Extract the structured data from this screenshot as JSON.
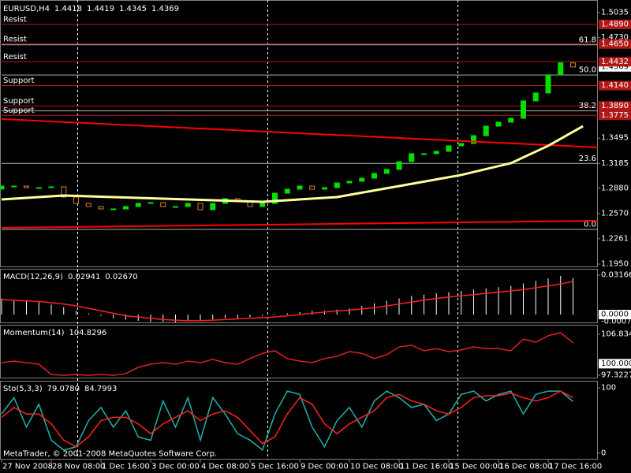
{
  "chart_data": [
    {
      "type": "candlestick",
      "title": "EURUSD,H4",
      "readout": [
        "1.4418",
        "1.4419",
        "1.4345",
        "1.4369"
      ],
      "xlim": [
        0,
        48
      ],
      "ylim": [
        1.1921,
        1.517
      ],
      "yticks": [
        1.5035,
        {
          "value": 1.473,
          "label": "1.4730"
        },
        1.3495,
        1.3185,
        {
          "value": 1.288,
          "label": "1.2880"
        },
        {
          "value": 1.257,
          "label": "1.2570"
        },
        1.2261,
        {
          "value": 1.195,
          "label": "1.1950"
        }
      ],
      "up_color": "#00e000",
      "down_color": "#d08030",
      "level_color": "#b01818",
      "fibo_color": "#b0b0b0",
      "x": [
        0,
        1,
        2,
        3,
        4,
        5,
        6,
        7,
        8,
        9,
        10,
        11,
        12,
        13,
        14,
        15,
        16,
        17,
        18,
        19,
        20,
        21,
        22,
        23,
        24,
        25,
        26,
        27,
        28,
        29,
        30,
        31,
        32,
        33,
        34,
        35,
        36,
        37,
        38,
        39,
        40,
        41,
        42,
        43,
        44,
        45,
        46
      ],
      "open": [
        1.287,
        1.2907,
        1.2907,
        1.2888,
        1.2888,
        1.2898,
        1.2772,
        1.2695,
        1.2656,
        1.2627,
        1.2627,
        1.2656,
        1.2695,
        1.2704,
        1.2656,
        1.2656,
        1.2695,
        1.2617,
        1.2695,
        1.2753,
        1.2724,
        1.2656,
        1.2695,
        1.282,
        1.2869,
        1.2907,
        1.2869,
        1.2888,
        1.2946,
        1.2966,
        1.3004,
        1.3062,
        1.3111,
        1.3207,
        1.3304,
        1.3304,
        1.3333,
        1.3401,
        1.343,
        1.3526,
        1.3642,
        1.3691,
        1.3739,
        1.3952,
        1.4049,
        1.4271,
        1.4418
      ],
      "close": [
        1.2907,
        1.2907,
        1.2888,
        1.2888,
        1.2898,
        1.2772,
        1.2695,
        1.2656,
        1.2627,
        1.2627,
        1.2656,
        1.2695,
        1.2704,
        1.2656,
        1.2656,
        1.2695,
        1.2617,
        1.2695,
        1.2753,
        1.2724,
        1.2656,
        1.2695,
        1.282,
        1.2869,
        1.2907,
        1.2869,
        1.2888,
        1.2946,
        1.2966,
        1.3004,
        1.3062,
        1.3111,
        1.3207,
        1.3304,
        1.3304,
        1.3333,
        1.3401,
        1.343,
        1.3526,
        1.3642,
        1.3691,
        1.3739,
        1.3952,
        1.4049,
        1.4271,
        1.4418,
        1.4369
      ],
      "lines": [
        {
          "color": "#ff0000",
          "width": 2,
          "x": [
            0,
            48
          ],
          "values": [
            1.3729,
            1.3381
          ]
        },
        {
          "color": "#ff0000",
          "width": 2,
          "x": [
            0,
            48
          ],
          "values": [
            1.2395,
            1.2482
          ]
        },
        {
          "color": "#ffff99",
          "width": 3,
          "x": [
            0,
            5,
            13,
            21,
            27,
            32,
            37,
            41,
            44,
            46.8
          ],
          "values": [
            1.2743,
            1.2791,
            1.2753,
            1.2714,
            1.2772,
            1.2907,
            1.3043,
            1.3188,
            1.3401,
            1.3642
          ]
        }
      ],
      "levels": [
        {
          "name": "Resist",
          "value": 1.489,
          "value_label": "1.4890"
        },
        {
          "name": "Resist",
          "value": 1.465,
          "value_label": "1.4650"
        },
        {
          "name": "Resist",
          "value": 1.4432
        },
        {
          "name": "Support",
          "value": 1.414,
          "value_label": "1.4140"
        },
        {
          "name": "Support",
          "value": 1.389,
          "value_label": "1.3890"
        },
        {
          "name": "Support",
          "value": 1.3775
        }
      ],
      "fibo": [
        {
          "label": "61.8",
          "value": 1.464
        },
        {
          "label": "50.0",
          "value": 1.427
        },
        {
          "label": "38.2",
          "value": 1.383
        },
        {
          "label": "23.6",
          "value": 1.3185
        },
        {
          "label": "0.0",
          "value": 1.2375
        }
      ]
    },
    {
      "type": "indicator",
      "title": "MACD(12,26,9)",
      "readout": [
        "0.02941",
        "0.02670"
      ],
      "xlim": [
        0,
        48
      ],
      "ylim": [
        -0.00633,
        0.03609
      ],
      "yticks": [
        0.03166,
        {
          "value": 0,
          "label": "0.0000",
          "box": "#ffffff"
        },
        -0.000757
      ],
      "x": [
        0,
        1,
        2,
        3,
        4,
        5,
        6,
        7,
        8,
        9,
        10,
        11,
        12,
        13,
        14,
        15,
        16,
        17,
        18,
        19,
        20,
        21,
        22,
        23,
        24,
        25,
        26,
        27,
        28,
        29,
        30,
        31,
        32,
        33,
        34,
        35,
        36,
        37,
        38,
        39,
        40,
        41,
        42,
        43,
        44,
        45,
        46
      ],
      "series": [
        {
          "kind": "bar",
          "color": "#ffffff",
          "values": [
            0.013,
            0.012,
            0.011,
            0.01,
            0.008,
            0.006,
            0.003,
            0.001,
            -0.001,
            -0.003,
            -0.004,
            -0.005,
            -0.006,
            -0.006,
            -0.006,
            -0.005,
            -0.005,
            -0.004,
            -0.003,
            -0.003,
            -0.002,
            -0.001,
            0.0005,
            0.001,
            0.002,
            0.003,
            0.003,
            0.004,
            0.005,
            0.007,
            0.009,
            0.011,
            0.013,
            0.015,
            0.016,
            0.017,
            0.018,
            0.019,
            0.02,
            0.021,
            0.022,
            0.023,
            0.025,
            0.027,
            0.029,
            0.031,
            0.02941
          ]
        },
        {
          "kind": "line",
          "color": "#ff2020",
          "values": [
            0.012,
            0.0115,
            0.011,
            0.0105,
            0.0095,
            0.0085,
            0.007,
            0.005,
            0.003,
            0.001,
            -0.001,
            -0.002,
            -0.003,
            -0.004,
            -0.0045,
            -0.005,
            -0.005,
            -0.0045,
            -0.004,
            -0.0035,
            -0.003,
            -0.0025,
            -0.002,
            -0.001,
            0,
            0.001,
            0.002,
            0.003,
            0.0035,
            0.0045,
            0.0055,
            0.007,
            0.0085,
            0.01,
            0.0115,
            0.013,
            0.014,
            0.015,
            0.016,
            0.017,
            0.018,
            0.019,
            0.02,
            0.0215,
            0.023,
            0.0245,
            0.0267
          ]
        }
      ]
    },
    {
      "type": "indicator",
      "title": "Momentum(14)",
      "readout": [
        "104.8296"
      ],
      "xlim": [
        0,
        48
      ],
      "ylim": [
        96.774,
        108.846
      ],
      "yticks": [
        106.8341,
        {
          "value": 100,
          "label": "100.0000",
          "box": "#ffffff"
        },
        97.3227
      ],
      "x": [
        0,
        1,
        2,
        3,
        4,
        5,
        6,
        7,
        8,
        9,
        10,
        11,
        12,
        13,
        14,
        15,
        16,
        17,
        18,
        19,
        20,
        21,
        22,
        23,
        24,
        25,
        26,
        27,
        28,
        29,
        30,
        31,
        32,
        33,
        34,
        35,
        36,
        37,
        38,
        39,
        40,
        41,
        42,
        43,
        44,
        45,
        46
      ],
      "series": [
        {
          "kind": "line",
          "color": "#e02020",
          "values": [
            100.25,
            100.6,
            100.25,
            99.88,
            97.5,
            97.3,
            97.5,
            97.3,
            97.5,
            97.3,
            97.7,
            99.15,
            99.88,
            100.25,
            99.88,
            100.6,
            100.25,
            101,
            100.25,
            99.88,
            101.2,
            102.4,
            103.0,
            101.2,
            100.6,
            100.25,
            101.2,
            101.7,
            102.8,
            102.4,
            101.2,
            102.1,
            103.9,
            104.3,
            103.0,
            103.5,
            102.8,
            103.2,
            103.9,
            103.5,
            103.5,
            103.0,
            105.7,
            105.0,
            106.5,
            107.2,
            104.8296
          ]
        }
      ]
    },
    {
      "type": "indicator",
      "title": "Sto(5,3,3)",
      "readout": [
        "79.0780",
        "84.7993"
      ],
      "xlim": [
        0,
        48
      ],
      "ylim": [
        -8.4,
        109.6
      ],
      "yticks": [
        100,
        0
      ],
      "xticks": [
        {
          "value": 0,
          "label": "27 Nov 2008"
        },
        {
          "value": 4,
          "label": "28 Nov 08:00"
        },
        {
          "value": 8,
          "label": "1 Dec 16:00"
        },
        {
          "value": 12,
          "label": "3 Dec 00:00"
        },
        {
          "value": 16,
          "label": "4 Dec 08:00"
        },
        {
          "value": 20,
          "label": "5 Dec 16:00"
        },
        {
          "value": 24,
          "label": "9 Dec 00:00"
        },
        {
          "value": 28,
          "label": "10 Dec 08:00"
        },
        {
          "value": 32,
          "label": "11 Dec 16:00"
        },
        {
          "value": 36,
          "label": "15 Dec 00:00"
        },
        {
          "value": 40,
          "label": "16 Dec 08:00"
        },
        {
          "value": 44,
          "label": "17 Dec 16:00"
        }
      ],
      "x": [
        0,
        1,
        2,
        3,
        4,
        5,
        6,
        7,
        8,
        9,
        10,
        11,
        12,
        13,
        14,
        15,
        16,
        17,
        18,
        19,
        20,
        21,
        22,
        23,
        24,
        25,
        26,
        27,
        28,
        29,
        30,
        31,
        32,
        33,
        34,
        35,
        36,
        37,
        38,
        39,
        40,
        41,
        42,
        43,
        44,
        45,
        46
      ],
      "series": [
        {
          "kind": "line",
          "color": "#20b2aa",
          "values": [
            60,
            85,
            40,
            75,
            20,
            5,
            10,
            50,
            70,
            40,
            65,
            25,
            20,
            80,
            40,
            85,
            20,
            85,
            60,
            30,
            20,
            5,
            60,
            95,
            90,
            40,
            10,
            50,
            70,
            40,
            80,
            95,
            85,
            70,
            75,
            50,
            60,
            90,
            95,
            80,
            90,
            95,
            60,
            90,
            95,
            95,
            79.078
          ]
        },
        {
          "kind": "line",
          "color": "#ff2020",
          "values": [
            55,
            70,
            60,
            60,
            45,
            20,
            10,
            25,
            50,
            55,
            55,
            45,
            30,
            45,
            55,
            65,
            50,
            60,
            65,
            55,
            35,
            15,
            25,
            60,
            85,
            75,
            45,
            30,
            45,
            55,
            65,
            85,
            90,
            80,
            75,
            65,
            60,
            70,
            85,
            88,
            88,
            92,
            85,
            80,
            85,
            95,
            84.7993
          ]
        }
      ]
    }
  ],
  "footer": "MetaTrader, © 2001-2008 MetaQuotes Software Corp."
}
